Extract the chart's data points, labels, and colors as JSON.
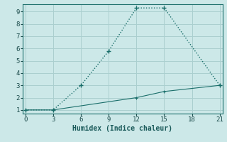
{
  "title": "",
  "xlabel": "Humidex (Indice chaleur)",
  "background_color": "#cce8e8",
  "grid_color": "#aacfcf",
  "line_color": "#1a6e6a",
  "line1_x": [
    0,
    3,
    6,
    9,
    12,
    15,
    21
  ],
  "line1_y": [
    1,
    1,
    3,
    5.8,
    9.3,
    9.3,
    3
  ],
  "line2_x": [
    0,
    3,
    12,
    15,
    21
  ],
  "line2_y": [
    1,
    1,
    2.0,
    2.5,
    3
  ],
  "xlim": [
    -0.3,
    21.3
  ],
  "ylim": [
    0.7,
    9.6
  ],
  "xticks": [
    0,
    3,
    6,
    9,
    12,
    15,
    18,
    21
  ],
  "yticks": [
    1,
    2,
    3,
    4,
    5,
    6,
    7,
    8,
    9
  ],
  "markersize1": 4,
  "markersize2": 3
}
